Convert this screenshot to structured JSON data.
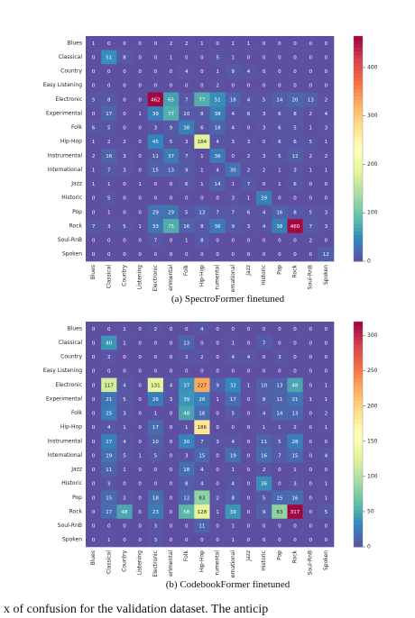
{
  "chart_data": [
    {
      "type": "heatmap",
      "title": "(a) SpectroFormer finetuned",
      "categories": [
        "Blues",
        "Classical",
        "Country",
        "Easy Listening",
        "Electronic",
        "Experimental",
        "Folk",
        "Hip-Hop",
        "Instrumental",
        "International",
        "Jazz",
        "Historic",
        "Pop",
        "Rock",
        "Soul-RnB",
        "Spoken"
      ],
      "x_categories": [
        "Blues",
        "Classical",
        "Country",
        "Listening",
        "Electronic",
        "erimental",
        "Folk",
        "Hip-Hop",
        "rumental",
        "ernational",
        "Jazz",
        "Historic",
        "Pop",
        "Rock",
        "Soul-RnB",
        "Spoken"
      ],
      "values": [
        [
          1,
          0,
          0,
          0,
          0,
          2,
          2,
          1,
          0,
          1,
          1,
          0,
          0,
          0,
          0,
          0
        ],
        [
          0,
          51,
          8,
          0,
          0,
          1,
          0,
          0,
          5,
          1,
          0,
          0,
          0,
          0,
          0,
          0
        ],
        [
          0,
          0,
          0,
          0,
          0,
          0,
          4,
          0,
          1,
          9,
          4,
          0,
          0,
          0,
          0,
          0
        ],
        [
          0,
          0,
          0,
          0,
          0,
          0,
          0,
          0,
          2,
          0,
          0,
          0,
          0,
          0,
          0,
          0
        ],
        [
          5,
          8,
          0,
          0,
          462,
          65,
          7,
          77,
          51,
          18,
          4,
          5,
          14,
          20,
          13,
          2
        ],
        [
          0,
          17,
          0,
          1,
          39,
          77,
          10,
          8,
          38,
          4,
          6,
          3,
          6,
          8,
          2,
          4
        ],
        [
          6,
          5,
          0,
          0,
          3,
          9,
          38,
          6,
          18,
          4,
          0,
          3,
          6,
          5,
          1,
          3
        ],
        [
          1,
          2,
          2,
          0,
          45,
          5,
          3,
          184,
          4,
          3,
          3,
          0,
          6,
          6,
          5,
          1
        ],
        [
          2,
          16,
          3,
          0,
          11,
          37,
          7,
          1,
          36,
          0,
          2,
          3,
          5,
          12,
          2,
          2
        ],
        [
          1,
          7,
          3,
          0,
          15,
          13,
          9,
          1,
          4,
          30,
          2,
          2,
          1,
          3,
          1,
          1
        ],
        [
          1,
          1,
          0,
          1,
          0,
          0,
          6,
          1,
          14,
          1,
          7,
          0,
          1,
          6,
          0,
          0
        ],
        [
          0,
          5,
          0,
          0,
          0,
          0,
          0,
          0,
          0,
          3,
          1,
          39,
          0,
          0,
          0,
          0
        ],
        [
          0,
          1,
          0,
          0,
          29,
          29,
          5,
          13,
          7,
          7,
          6,
          4,
          16,
          8,
          5,
          3
        ],
        [
          7,
          3,
          5,
          1,
          33,
          75,
          16,
          8,
          36,
          9,
          3,
          4,
          38,
          460,
          7,
          3
        ],
        [
          0,
          0,
          0,
          0,
          7,
          0,
          1,
          8,
          0,
          0,
          0,
          0,
          0,
          0,
          2,
          0
        ],
        [
          0,
          0,
          0,
          0,
          0,
          0,
          0,
          0,
          0,
          0,
          0,
          0,
          0,
          0,
          0,
          12
        ]
      ],
      "clim": [
        0,
        465
      ],
      "cticks": [
        0,
        100,
        200,
        300,
        400
      ],
      "colormap": [
        "#9e0142",
        "#d53e4f",
        "#f46d43",
        "#fdae61",
        "#fee08b",
        "#ffffbf",
        "#e6f598",
        "#abdda4",
        "#66c2a5",
        "#3288bd",
        "#5e4fa2"
      ]
    },
    {
      "type": "heatmap",
      "title": "(b) CodebookFormer finetuned",
      "categories": [
        "Blues",
        "Classical",
        "Country",
        "Easy Listening",
        "Electronic",
        "Experimental",
        "Folk",
        "Hip-Hop",
        "Instrumental",
        "International",
        "Jazz",
        "Historic",
        "Pop",
        "Rock",
        "Soul-RnB",
        "Spoken"
      ],
      "x_categories": [
        "Blues",
        "Classical",
        "Country",
        "Listening",
        "Electronic",
        "erimental",
        "Folk",
        "Hip-Hop",
        "rumental",
        "ernational",
        "Jazz",
        "Historic",
        "Pop",
        "Rock",
        "Soul-RnB",
        "Spoken"
      ],
      "values": [
        [
          0,
          0,
          1,
          0,
          2,
          0,
          0,
          4,
          0,
          0,
          0,
          0,
          0,
          0,
          0,
          0
        ],
        [
          0,
          40,
          1,
          0,
          0,
          0,
          13,
          0,
          0,
          1,
          0,
          7,
          0,
          0,
          0,
          0
        ],
        [
          0,
          2,
          0,
          0,
          0,
          0,
          3,
          2,
          0,
          4,
          4,
          0,
          3,
          0,
          0,
          0
        ],
        [
          0,
          0,
          0,
          0,
          0,
          0,
          0,
          0,
          0,
          0,
          0,
          0,
          0,
          0,
          0,
          0
        ],
        [
          0,
          117,
          4,
          0,
          131,
          4,
          37,
          227,
          9,
          32,
          1,
          10,
          13,
          48,
          0,
          1
        ],
        [
          0,
          21,
          5,
          0,
          26,
          3,
          39,
          28,
          1,
          17,
          0,
          8,
          11,
          21,
          1,
          1
        ],
        [
          0,
          25,
          3,
          0,
          1,
          0,
          48,
          16,
          0,
          5,
          0,
          4,
          14,
          13,
          0,
          2
        ],
        [
          0,
          4,
          1,
          0,
          17,
          0,
          1,
          186,
          0,
          0,
          0,
          1,
          1,
          2,
          0,
          1
        ],
        [
          0,
          27,
          4,
          0,
          10,
          0,
          30,
          7,
          3,
          4,
          0,
          11,
          5,
          28,
          0,
          0
        ],
        [
          0,
          19,
          5,
          1,
          5,
          0,
          3,
          15,
          0,
          19,
          0,
          16,
          7,
          15,
          0,
          4
        ],
        [
          0,
          11,
          1,
          0,
          0,
          0,
          18,
          4,
          0,
          1,
          0,
          2,
          0,
          1,
          0,
          0
        ],
        [
          0,
          3,
          0,
          0,
          0,
          0,
          8,
          4,
          0,
          4,
          0,
          36,
          0,
          3,
          0,
          1
        ],
        [
          0,
          15,
          2,
          0,
          18,
          0,
          12,
          83,
          2,
          8,
          0,
          5,
          15,
          16,
          0,
          1
        ],
        [
          0,
          17,
          48,
          0,
          23,
          0,
          58,
          128,
          1,
          39,
          0,
          9,
          83,
          317,
          0,
          5
        ],
        [
          0,
          0,
          0,
          0,
          3,
          0,
          0,
          11,
          0,
          1,
          0,
          0,
          0,
          0,
          0,
          0
        ],
        [
          0,
          1,
          0,
          0,
          3,
          0,
          0,
          0,
          0,
          1,
          0,
          0,
          0,
          0,
          0,
          0
        ]
      ],
      "clim": [
        0,
        320
      ],
      "cticks": [
        0,
        50,
        100,
        150,
        200,
        250,
        300
      ],
      "colormap": [
        "#9e0142",
        "#d53e4f",
        "#f46d43",
        "#fdae61",
        "#fee08b",
        "#ffffbf",
        "#e6f598",
        "#abdda4",
        "#66c2a5",
        "#3288bd",
        "#5e4fa2"
      ]
    }
  ],
  "caption": "x of confusion for the validation dataset. The anticip"
}
